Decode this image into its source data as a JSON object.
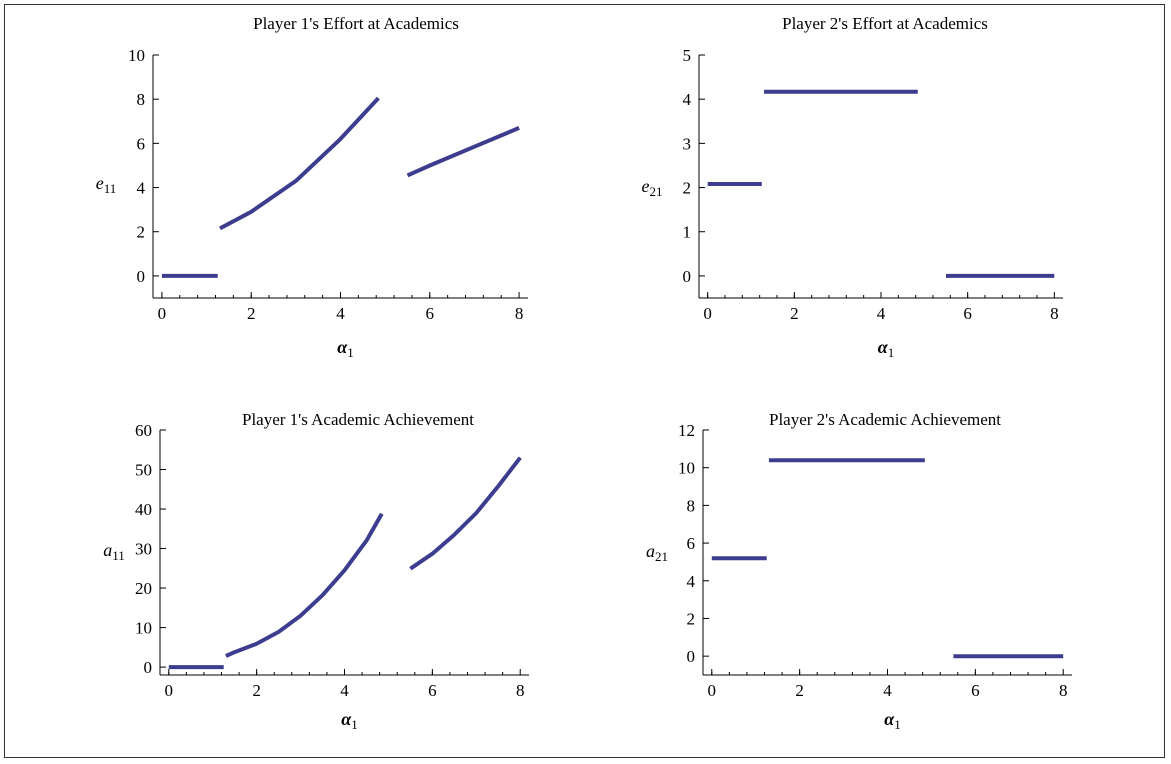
{
  "chart_data": [
    {
      "type": "line",
      "title": "Player 1's Effort at Academics",
      "xlabel_main": "α",
      "xlabel_sub": "1",
      "ylabel_main": "e",
      "ylabel_sub": "11",
      "xlim": [
        -0.2,
        8.2
      ],
      "ylim": [
        -1,
        10
      ],
      "xticks": [
        0,
        2,
        4,
        6,
        8
      ],
      "yticks": [
        0,
        2,
        4,
        6,
        8,
        10
      ],
      "color": "#3d3d8f",
      "series": [
        {
          "points": [
            [
              0,
              0
            ],
            [
              1.25,
              0
            ]
          ]
        },
        {
          "points": [
            [
              1.3,
              2.15
            ],
            [
              2,
              2.9
            ],
            [
              3,
              4.3
            ],
            [
              4,
              6.2
            ],
            [
              4.85,
              8.05
            ]
          ]
        },
        {
          "points": [
            [
              5.5,
              4.55
            ],
            [
              6,
              5.0
            ],
            [
              7,
              5.85
            ],
            [
              8,
              6.7
            ]
          ]
        }
      ]
    },
    {
      "type": "line",
      "title": "Player 2's Effort at Academics",
      "xlabel_main": "α",
      "xlabel_sub": "1",
      "ylabel_main": "e",
      "ylabel_sub": "21",
      "xlim": [
        -0.2,
        8.2
      ],
      "ylim": [
        -0.5,
        5
      ],
      "xticks": [
        0,
        2,
        4,
        6,
        8
      ],
      "yticks": [
        0,
        1,
        2,
        3,
        4,
        5
      ],
      "color": "#3d3d8f",
      "series": [
        {
          "points": [
            [
              0,
              2.08
            ],
            [
              1.25,
              2.08
            ]
          ]
        },
        {
          "points": [
            [
              1.3,
              4.17
            ],
            [
              4.85,
              4.17
            ]
          ]
        },
        {
          "points": [
            [
              5.5,
              0
            ],
            [
              8,
              0
            ]
          ]
        }
      ]
    },
    {
      "type": "line",
      "title": "Player 1's Academic Achievement",
      "xlabel_main": "α",
      "xlabel_sub": "1",
      "ylabel_main": "a",
      "ylabel_sub": "11",
      "xlim": [
        -0.2,
        8.2
      ],
      "ylim": [
        -2,
        60
      ],
      "xticks": [
        0,
        2,
        4,
        6,
        8
      ],
      "yticks": [
        0,
        10,
        20,
        30,
        40,
        50,
        60
      ],
      "color": "#3d3d8f",
      "series": [
        {
          "points": [
            [
              0,
              0
            ],
            [
              1.25,
              0
            ]
          ]
        },
        {
          "points": [
            [
              1.3,
              2.8
            ],
            [
              1.5,
              3.8
            ],
            [
              2,
              5.9
            ],
            [
              2.5,
              8.9
            ],
            [
              3,
              13.0
            ],
            [
              3.5,
              18.2
            ],
            [
              4,
              24.5
            ],
            [
              4.5,
              32.0
            ],
            [
              4.85,
              38.8
            ]
          ]
        },
        {
          "points": [
            [
              5.5,
              24.9
            ],
            [
              6,
              28.7
            ],
            [
              6.5,
              33.5
            ],
            [
              7,
              39.0
            ],
            [
              7.5,
              45.8
            ],
            [
              8,
              53.0
            ]
          ]
        }
      ]
    },
    {
      "type": "line",
      "title": "Player 2's Academic Achievement",
      "xlabel_main": "α",
      "xlabel_sub": "1",
      "ylabel_main": "a",
      "ylabel_sub": "21",
      "xlim": [
        -0.2,
        8.2
      ],
      "ylim": [
        -1,
        12
      ],
      "xticks": [
        0,
        2,
        4,
        6,
        8
      ],
      "yticks": [
        0,
        2,
        4,
        6,
        8,
        10,
        12
      ],
      "color": "#3d3d8f",
      "series": [
        {
          "points": [
            [
              0,
              5.2
            ],
            [
              1.25,
              5.2
            ]
          ]
        },
        {
          "points": [
            [
              1.3,
              10.4
            ],
            [
              4.85,
              10.4
            ]
          ]
        },
        {
          "points": [
            [
              5.5,
              0
            ],
            [
              8,
              0
            ]
          ]
        }
      ]
    }
  ]
}
